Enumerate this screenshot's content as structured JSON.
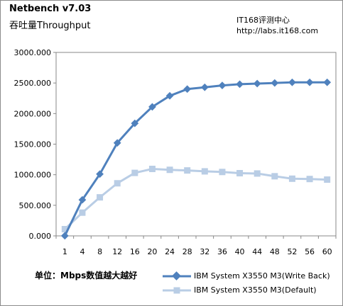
{
  "header": {
    "title": "Netbench v7.03",
    "subtitle": "吞吐量Throughput",
    "source_line1": "IT168评测中心",
    "source_line2": "http://labs.it168.com"
  },
  "note": "单位：Mbps数值越大越好",
  "colors": {
    "write_back": "#4f81bd",
    "default": "#b9cde5",
    "plot_border": "#888888",
    "frame_border": "#8c8c8c"
  },
  "chart_data": {
    "type": "line",
    "title": "Netbench v7.03",
    "subtitle": "吞吐量Throughput",
    "xlabel": "",
    "ylabel": "",
    "ylim": [
      0,
      3000
    ],
    "y_ticks": [
      "0.000",
      "500.000",
      "1000.000",
      "1500.000",
      "2000.000",
      "2500.000",
      "3000.000"
    ],
    "grid": false,
    "legend_position": "bottom-right",
    "categories": [
      "1",
      "4",
      "8",
      "12",
      "16",
      "20",
      "24",
      "28",
      "32",
      "36",
      "40",
      "44",
      "48",
      "52",
      "56",
      "60"
    ],
    "series": [
      {
        "name": "IBM System X3550 M3(Write Back)",
        "marker": "diamond",
        "color": "#4f81bd",
        "values": [
          2,
          590,
          1010,
          1520,
          1840,
          2110,
          2290,
          2400,
          2430,
          2460,
          2480,
          2490,
          2500,
          2510,
          2510,
          2510
        ]
      },
      {
        "name": "IBM System X3550 M3(Default)",
        "marker": "square",
        "color": "#b9cde5",
        "values": [
          110,
          380,
          630,
          860,
          1030,
          1095,
          1080,
          1070,
          1055,
          1045,
          1025,
          1020,
          975,
          935,
          930,
          920
        ]
      }
    ]
  }
}
